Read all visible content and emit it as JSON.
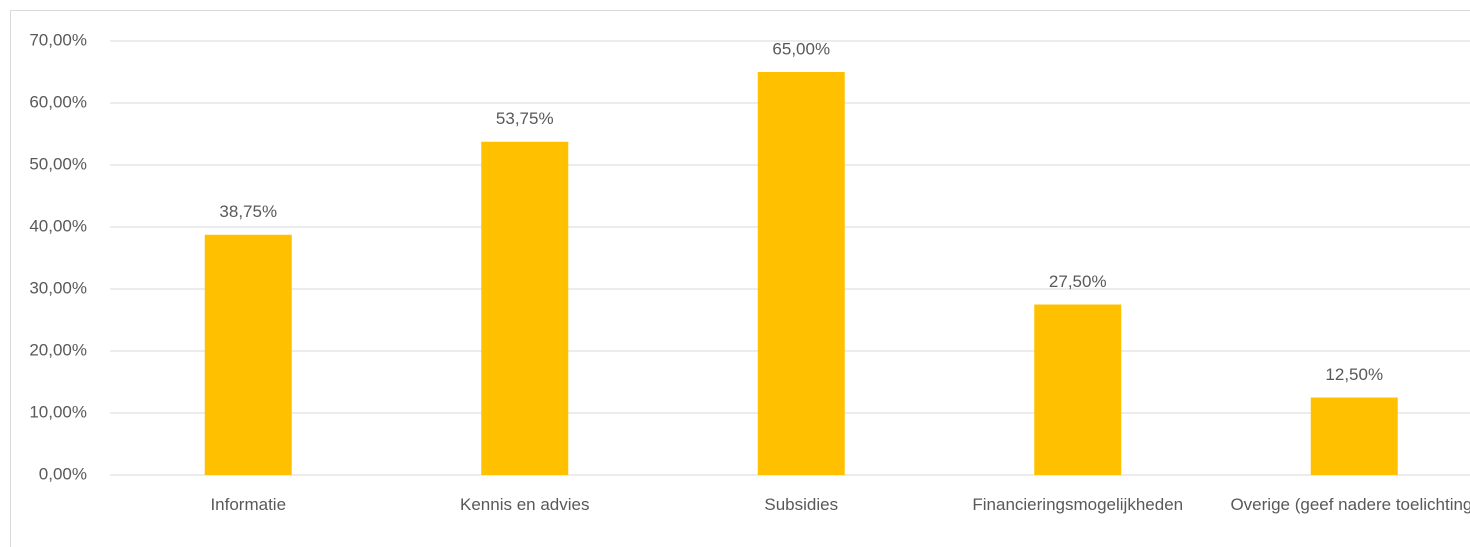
{
  "chart_data": {
    "type": "bar",
    "categories": [
      "Informatie",
      "Kennis en advies",
      "Subsidies",
      "Financieringsmogelijkheden",
      "Overige (geef nadere toelichting)"
    ],
    "values": [
      38.75,
      53.75,
      65,
      27.5,
      12.5
    ],
    "value_labels": [
      "38,75%",
      "53,75%",
      "65,00%",
      "27,50%",
      "12,50%"
    ],
    "color": "#ffc000",
    "ylim": [
      0,
      70
    ],
    "yticks": [
      {
        "value": 0,
        "label": "0,00%"
      },
      {
        "value": 10,
        "label": "10,00%"
      },
      {
        "value": 20,
        "label": "20,00%"
      },
      {
        "value": 30,
        "label": "30,00%"
      },
      {
        "value": 40,
        "label": "40,00%"
      },
      {
        "value": 50,
        "label": "50,00%"
      },
      {
        "value": 60,
        "label": "60,00%"
      },
      {
        "value": 70,
        "label": "70,00%"
      }
    ],
    "grid": true
  }
}
